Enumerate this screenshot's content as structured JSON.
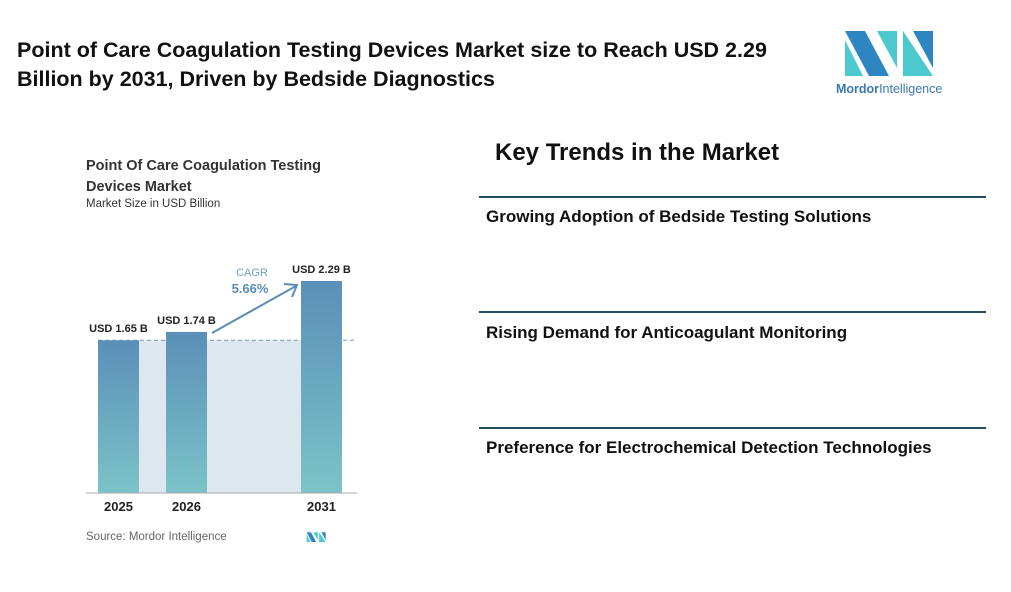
{
  "header": {
    "title": "Point of Care Coagulation Testing Devices Market size to Reach USD 2.29 Billion by 2031, Driven by Bedside Diagnostics",
    "logo": {
      "word1": "Mordor",
      "word2": "Intelligence"
    }
  },
  "chart_data": {
    "type": "bar",
    "title": "Point Of Care Coagulation Testing Devices Market",
    "subtitle": "Market Size in USD Billion",
    "categories": [
      "2025",
      "2026",
      "2031"
    ],
    "values": [
      1.65,
      1.74,
      2.29
    ],
    "data_labels": [
      "USD 1.65 B",
      "USD 1.74 B",
      "USD 2.29 B"
    ],
    "annotation": {
      "label": "CAGR",
      "value": "5.66%"
    },
    "ylim": [
      0,
      2.29
    ],
    "source": "Source: Mordor Intelligence",
    "colors": {
      "bar_top": "#5b8fb8",
      "bar_bottom": "#7cc3c8",
      "shade": "#dde7f0",
      "accent": "#5a8db5"
    }
  },
  "trends": {
    "heading": "Key Trends in the Market",
    "items": [
      "Growing Adoption of Bedside Testing Solutions",
      "Rising Demand for Anticoagulant Monitoring",
      "Preference for Electrochemical Detection Technologies"
    ]
  }
}
